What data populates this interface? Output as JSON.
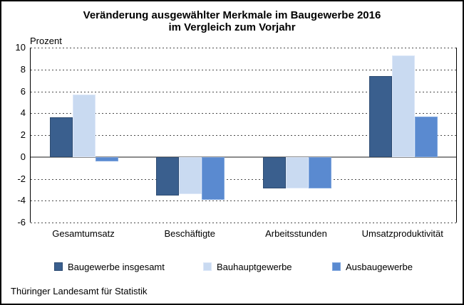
{
  "title": {
    "line1": "Veränderung ausgewählter Merkmale im Baugewerbe 2016",
    "line2": "im Vergleich zum Vorjahr"
  },
  "unit_label": "Prozent",
  "footer": "Thüringer Landesamt für Statistik",
  "colors": {
    "series_dark": "#3A5F8E",
    "series_light": "#C9DAF1",
    "series_medium": "#5A8AD0",
    "gridline": "#4a4a4a",
    "zero_line": "#8c8c8c",
    "frame_border": "#000000"
  },
  "chart_data": {
    "type": "bar",
    "title": "Veränderung ausgewählter Merkmale im Baugewerbe 2016 im Vergleich zum Vorjahr",
    "ylabel": "Prozent",
    "xlabel": "",
    "ylim": [
      -6,
      10
    ],
    "yticks": [
      10,
      8,
      6,
      4,
      2,
      0,
      -2,
      -4,
      -6
    ],
    "grid": "horizontal-dashed",
    "legend_position": "bottom",
    "categories": [
      "Gesamtumsatz",
      "Beschäftigte",
      "Arbeitsstunden",
      "Umsatzproduktivität"
    ],
    "series": [
      {
        "name": "Baugewerbe insgesamt",
        "color": "#3A5F8E",
        "border": "#2E4C72",
        "values": [
          3.6,
          -3.5,
          -2.9,
          7.4
        ]
      },
      {
        "name": "Bauhauptgewerbe",
        "color": "#C9DAF1",
        "border": "#DCE7F8",
        "values": [
          5.7,
          -3.4,
          -2.9,
          9.3
        ]
      },
      {
        "name": "Ausbaugewerbe",
        "color": "#5A8AD0",
        "border": "#7FA6DE",
        "values": [
          -0.4,
          -3.9,
          -2.9,
          3.7
        ]
      }
    ]
  }
}
